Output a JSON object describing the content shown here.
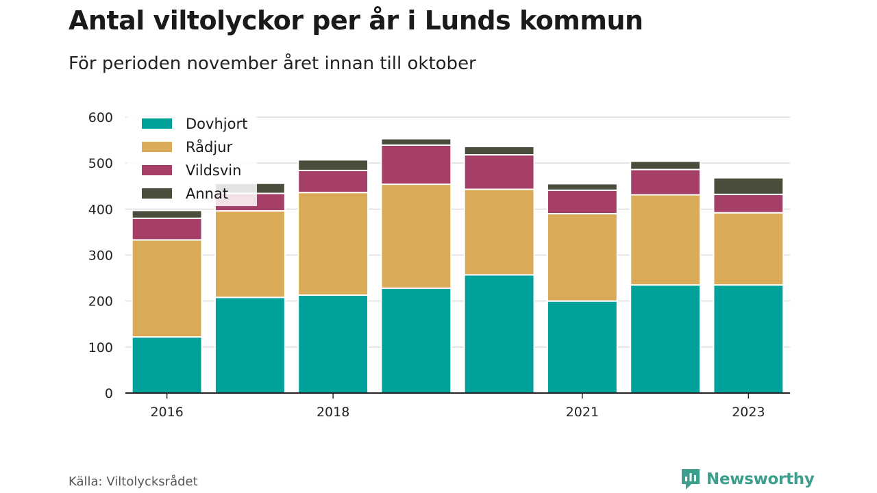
{
  "header": {
    "title": "Antal viltolyckor per år i Lunds kommun",
    "subtitle": "För perioden november året innan till oktober"
  },
  "footer": {
    "source": "Källa: Viltolycksrådet",
    "brand": "Newsworthy",
    "brand_color": "#3e9e8e"
  },
  "chart_data": {
    "type": "bar",
    "stacked": true,
    "categories": [
      "2016",
      "2017",
      "2018",
      "2019",
      "2020",
      "2021",
      "2022",
      "2023"
    ],
    "x_tick_labels": [
      "2016",
      "",
      "2018",
      "",
      "",
      "2021",
      "",
      "2023"
    ],
    "series": [
      {
        "name": "Dovhjort",
        "color": "#00a19a",
        "values": [
          122,
          208,
          213,
          228,
          257,
          200,
          235,
          235
        ]
      },
      {
        "name": "Rådjur",
        "color": "#d9ab58",
        "values": [
          211,
          188,
          223,
          226,
          186,
          190,
          196,
          157
        ]
      },
      {
        "name": "Vildsvin",
        "color": "#a53f68",
        "values": [
          47,
          38,
          48,
          85,
          75,
          51,
          55,
          40
        ]
      },
      {
        "name": "Annat",
        "color": "#4b4d3c",
        "values": [
          17,
          22,
          23,
          14,
          18,
          14,
          18,
          36
        ]
      }
    ],
    "yticks": [
      0,
      100,
      200,
      300,
      400,
      500,
      600
    ],
    "ylim": [
      0,
      600
    ],
    "grid": true,
    "legend_position": "top-left"
  }
}
